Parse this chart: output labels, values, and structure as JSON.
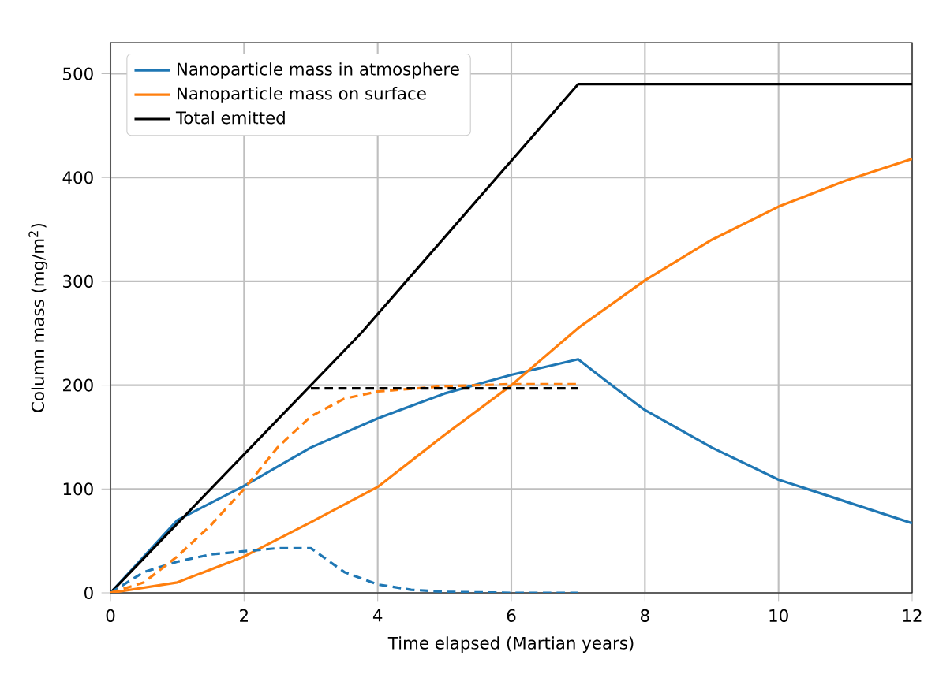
{
  "chart_data": {
    "type": "line",
    "xlabel": "Time elapsed (Martian years)",
    "ylabel": "Column mass (mg/m$^{2}$)",
    "xlim": [
      0,
      12
    ],
    "ylim": [
      0,
      530
    ],
    "xticks": [
      0,
      2,
      4,
      6,
      8,
      10,
      12
    ],
    "yticks": [
      0,
      100,
      200,
      300,
      400,
      500
    ],
    "grid": true,
    "legend": "top left",
    "marker": "none",
    "series": [
      {
        "name": "Nanoparticle mass in atmosphere",
        "color": "#1f77b4",
        "line_style": "solid",
        "x": [
          0,
          1,
          2,
          3,
          4,
          5,
          6,
          7,
          7.5,
          8,
          9,
          10,
          11,
          12
        ],
        "values": [
          0,
          70,
          103,
          140,
          168,
          192,
          210,
          225,
          200,
          176,
          140,
          109,
          88,
          67
        ]
      },
      {
        "name": "Nanoparticle mass on surface",
        "color": "#ff7f0e",
        "line_style": "solid",
        "x": [
          0,
          1,
          2,
          3,
          4,
          5,
          6,
          7,
          8,
          9,
          10,
          11,
          12
        ],
        "values": [
          0,
          10,
          35,
          68,
          102,
          152,
          200,
          255,
          301,
          340,
          372,
          397,
          418
        ]
      },
      {
        "name": "Total emitted",
        "color": "#000000",
        "line_style": "solid",
        "x": [
          0,
          3.75,
          7,
          12
        ],
        "values": [
          0,
          250,
          490,
          490
        ]
      },
      {
        "color": "#1f77b4",
        "line_style": "dashed",
        "x": [
          0,
          0.5,
          1,
          1.5,
          2,
          2.5,
          3,
          3.5,
          4,
          4.5,
          5,
          6,
          7
        ],
        "values": [
          0,
          20,
          30,
          37,
          40,
          43,
          43,
          20,
          8,
          3,
          1,
          0,
          0
        ]
      },
      {
        "color": "#ff7f0e",
        "line_style": "dashed",
        "x": [
          0,
          0.5,
          1,
          1.5,
          2,
          2.5,
          3,
          3.5,
          4,
          5,
          6,
          7
        ],
        "values": [
          0,
          10,
          35,
          65,
          100,
          140,
          170,
          187,
          194,
          199,
          201,
          201
        ]
      },
      {
        "color": "#000000",
        "line_style": "dashed",
        "x": [
          3,
          7
        ],
        "values": [
          197,
          197
        ]
      }
    ]
  }
}
